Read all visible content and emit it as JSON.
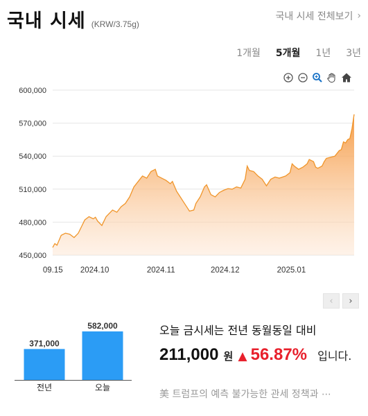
{
  "header": {
    "title": "국내 시세",
    "unit": "(KRW/3.75g)",
    "view_all": "국내 시세 전체보기"
  },
  "periods": [
    {
      "label": "1개월",
      "active": false
    },
    {
      "label": "5개월",
      "active": true
    },
    {
      "label": "1년",
      "active": false
    },
    {
      "label": "3년",
      "active": false
    }
  ],
  "tools": [
    "zoom-in-icon",
    "zoom-out-icon",
    "magnifier-icon",
    "pan-hand-icon",
    "home-icon"
  ],
  "colors": {
    "line": "#f0952a",
    "area_top": "#f7a55a",
    "bar": "#2b9cf5",
    "up": "#e8202c"
  },
  "chart_data": [
    {
      "type": "area",
      "y_ticks": [
        "600,000",
        "570,000",
        "540,000",
        "510,000",
        "480,000",
        "450,000"
      ],
      "ylim": [
        450000,
        600000
      ],
      "x_ticks": [
        "09.15",
        "2024.10",
        "2024.11",
        "2024.12",
        "2025.01"
      ],
      "x_tick_dates": [
        "2024-09-15",
        "2024-10-01",
        "2024-11-01",
        "2024-12-01",
        "2025-01-01"
      ],
      "x_range": [
        "2024-09-12",
        "2025-01-31"
      ],
      "grid": true,
      "series": [
        {
          "points": [
            [
              "2024-09-12",
              457000
            ],
            [
              "2024-09-13",
              460500
            ],
            [
              "2024-09-14",
              459000
            ],
            [
              "2024-09-16",
              468000
            ],
            [
              "2024-09-18",
              470000
            ],
            [
              "2024-09-20",
              469000
            ],
            [
              "2024-09-22",
              466000
            ],
            [
              "2024-09-24",
              470000
            ],
            [
              "2024-09-26",
              478000
            ],
            [
              "2024-09-27",
              482000
            ],
            [
              "2024-09-29",
              485000
            ],
            [
              "2024-10-01",
              483000
            ],
            [
              "2024-10-02",
              484500
            ],
            [
              "2024-10-03",
              481000
            ],
            [
              "2024-10-05",
              477000
            ],
            [
              "2024-10-07",
              485000
            ],
            [
              "2024-10-08",
              487000
            ],
            [
              "2024-10-10",
              491000
            ],
            [
              "2024-10-12",
              489000
            ],
            [
              "2024-10-14",
              494000
            ],
            [
              "2024-10-16",
              497000
            ],
            [
              "2024-10-18",
              503000
            ],
            [
              "2024-10-20",
              512000
            ],
            [
              "2024-10-22",
              517000
            ],
            [
              "2024-10-24",
              522000
            ],
            [
              "2024-10-26",
              520000
            ],
            [
              "2024-10-28",
              526000
            ],
            [
              "2024-10-30",
              528000
            ],
            [
              "2024-10-31",
              522000
            ],
            [
              "2024-11-02",
              520000
            ],
            [
              "2024-11-04",
              518000
            ],
            [
              "2024-11-06",
              515000
            ],
            [
              "2024-11-07",
              517000
            ],
            [
              "2024-11-09",
              508000
            ],
            [
              "2024-11-11",
              502000
            ],
            [
              "2024-11-12",
              499000
            ],
            [
              "2024-11-14",
              493000
            ],
            [
              "2024-11-15",
              490000
            ],
            [
              "2024-11-17",
              491000
            ],
            [
              "2024-11-18",
              497000
            ],
            [
              "2024-11-20",
              503000
            ],
            [
              "2024-11-22",
              512000
            ],
            [
              "2024-11-23",
              514000
            ],
            [
              "2024-11-25",
              505000
            ],
            [
              "2024-11-27",
              503000
            ],
            [
              "2024-11-29",
              507000
            ],
            [
              "2024-12-01",
              509000
            ],
            [
              "2024-12-03",
              510500
            ],
            [
              "2024-12-05",
              510000
            ],
            [
              "2024-12-07",
              512000
            ],
            [
              "2024-12-09",
              511000
            ],
            [
              "2024-12-11",
              519000
            ],
            [
              "2024-12-12",
              531000
            ],
            [
              "2024-12-13",
              527000
            ],
            [
              "2024-12-15",
              526000
            ],
            [
              "2024-12-17",
              522000
            ],
            [
              "2024-12-19",
              519000
            ],
            [
              "2024-12-21",
              513000
            ],
            [
              "2024-12-23",
              519000
            ],
            [
              "2024-12-25",
              521000
            ],
            [
              "2024-12-27",
              520000
            ],
            [
              "2024-12-30",
              522000
            ],
            [
              "2025-01-01",
              525000
            ],
            [
              "2025-01-02",
              533000
            ],
            [
              "2025-01-03",
              531000
            ],
            [
              "2025-01-05",
              528000
            ],
            [
              "2025-01-07",
              530000
            ],
            [
              "2025-01-09",
              533000
            ],
            [
              "2025-01-10",
              537000
            ],
            [
              "2025-01-12",
              535000
            ],
            [
              "2025-01-13",
              530000
            ],
            [
              "2025-01-14",
              529000
            ],
            [
              "2025-01-16",
              531000
            ],
            [
              "2025-01-17",
              535000
            ],
            [
              "2025-01-18",
              538000
            ],
            [
              "2025-01-20",
              539000
            ],
            [
              "2025-01-22",
              540000
            ],
            [
              "2025-01-24",
              545000
            ],
            [
              "2025-01-25",
              546000
            ],
            [
              "2025-01-26",
              553000
            ],
            [
              "2025-01-27",
              552000
            ],
            [
              "2025-01-28",
              555000
            ],
            [
              "2025-01-29",
              556000
            ],
            [
              "2025-01-30",
              565000
            ],
            [
              "2025-01-31",
              578000
            ]
          ]
        }
      ]
    },
    {
      "type": "bar",
      "categories": [
        "전년",
        "오늘"
      ],
      "values": [
        371000,
        582000
      ],
      "value_labels": [
        "371,000",
        "582,000"
      ]
    }
  ],
  "summary": {
    "text": "오늘 금시세는 전년 동월동일 대비",
    "diff": "211,000",
    "won": "원",
    "arrow": "▲",
    "percent": "56.87%",
    "tail": "입니다."
  },
  "news": {
    "headline": "美 트럼프의 예측 불가능한 관세 정책과 ⋯"
  },
  "pager": {
    "prev": "‹",
    "next": "›"
  }
}
